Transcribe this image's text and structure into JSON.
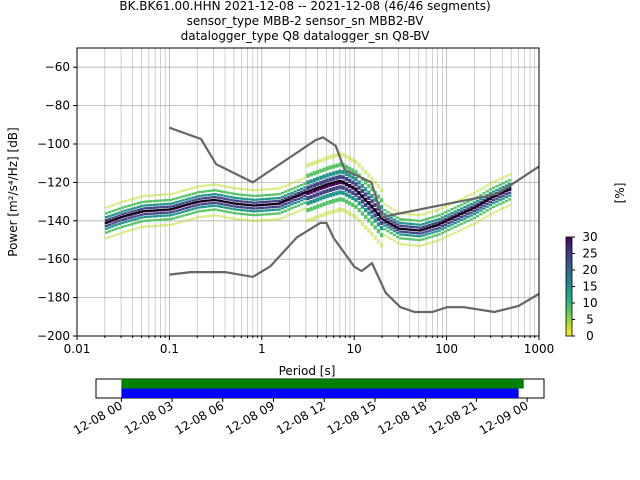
{
  "chart_data": {
    "type": "line",
    "title_lines": [
      "BK.BK61.00.HHN   2021-12-08 -- 2021-12-08  (46/46 segments)",
      "sensor_type MBB-2 sensor_sn MBB2-BV",
      "datalogger_type Q8 datalogger_sn Q8-BV"
    ],
    "xlabel": "Period [s]",
    "ylabel": "Power [m²/s⁴/Hz] [dB]",
    "xscale": "log",
    "xlim": [
      0.01,
      1000
    ],
    "ylim": [
      -200,
      -50
    ],
    "grid": true,
    "xticks": [
      {
        "value": 0.01,
        "label": "0.01"
      },
      {
        "value": 0.1,
        "label": "0.1"
      },
      {
        "value": 1,
        "label": "1"
      },
      {
        "value": 10,
        "label": "10"
      },
      {
        "value": 100,
        "label": "100"
      },
      {
        "value": 1000,
        "label": "1000"
      }
    ],
    "yticks": [
      {
        "value": -60,
        "label": "−60"
      },
      {
        "value": -80,
        "label": "−80"
      },
      {
        "value": -100,
        "label": "−100"
      },
      {
        "value": -120,
        "label": "−120"
      },
      {
        "value": -140,
        "label": "−140"
      },
      {
        "value": -160,
        "label": "−160"
      },
      {
        "value": -180,
        "label": "−180"
      },
      {
        "value": -200,
        "label": "−200"
      }
    ],
    "series": [
      {
        "role": "mean",
        "color": "#000000",
        "x": [
          0.02,
          0.03,
          0.05,
          0.1,
          0.2,
          0.3,
          0.5,
          0.8,
          1.5,
          3,
          5,
          7,
          10,
          15,
          20,
          30,
          50,
          80,
          120,
          200,
          300,
          500
        ],
        "y": [
          -141,
          -138,
          -135,
          -134,
          -130,
          -129,
          -131,
          -132,
          -131,
          -125,
          -121,
          -119,
          -123,
          -132,
          -139,
          -144,
          -145,
          -142,
          -138,
          -133,
          -128,
          -123
        ]
      },
      {
        "role": "noise-model-high",
        "color": "#666666",
        "x": [
          0.1,
          0.22,
          0.32,
          0.8,
          3.8,
          4.6,
          6.3,
          7.9,
          15.4,
          20,
          354.8,
          10000
        ],
        "y": [
          -91.5,
          -97.4,
          -110.5,
          -120,
          -98,
          -96.5,
          -101,
          -113.5,
          -120,
          -138,
          -126,
          -80
        ]
      },
      {
        "role": "noise-model-low",
        "color": "#666666",
        "x": [
          0.1,
          0.17,
          0.4,
          0.8,
          1.24,
          2.4,
          4.3,
          5,
          6,
          10,
          12,
          15.6,
          21.9,
          31.6,
          45,
          70,
          101,
          154,
          328,
          600,
          1000
        ],
        "y": [
          -168,
          -166.7,
          -166.7,
          -169.2,
          -163.7,
          -148.6,
          -141.1,
          -141.1,
          -149,
          -163.8,
          -166.2,
          -162.1,
          -177.5,
          -185,
          -187.5,
          -187.5,
          -185,
          -185,
          -187.5,
          -184.4,
          -178
        ]
      }
    ],
    "density": {
      "colormap": "viridis_r",
      "clim": [
        0,
        30
      ],
      "offsets_db": [
        -8,
        -5,
        -3,
        -1.5,
        0,
        1.5,
        3,
        5,
        8
      ],
      "offset_weights": [
        3,
        8,
        14,
        24,
        30,
        24,
        14,
        8,
        3
      ],
      "spread_high_period": [
        3,
        20
      ],
      "spread_high_db": 20
    },
    "colorbar": {
      "label": "[%]",
      "ticks": [
        {
          "value": 0,
          "label": "0"
        },
        {
          "value": 5,
          "label": "5"
        },
        {
          "value": 10,
          "label": "10"
        },
        {
          "value": 15,
          "label": "15"
        },
        {
          "value": 20,
          "label": "20"
        },
        {
          "value": 25,
          "label": "25"
        },
        {
          "value": 30,
          "label": "30"
        }
      ]
    }
  },
  "timeline": {
    "xlim_hours": [
      -1.5,
      25
    ],
    "bars": [
      {
        "name": "data-coverage",
        "color": "#008000",
        "start": 0,
        "end": 23.8
      },
      {
        "name": "segment-coverage",
        "color": "#0000ff",
        "start": 0,
        "end": 23.5
      }
    ],
    "ticks": [
      {
        "hours": 0,
        "label": "12-08 00"
      },
      {
        "hours": 3,
        "label": "12-08 03"
      },
      {
        "hours": 6,
        "label": "12-08 06"
      },
      {
        "hours": 9,
        "label": "12-08 09"
      },
      {
        "hours": 12,
        "label": "12-08 12"
      },
      {
        "hours": 15,
        "label": "12-08 15"
      },
      {
        "hours": 18,
        "label": "12-08 18"
      },
      {
        "hours": 21,
        "label": "12-08 21"
      },
      {
        "hours": 24,
        "label": "12-09 00"
      }
    ]
  }
}
